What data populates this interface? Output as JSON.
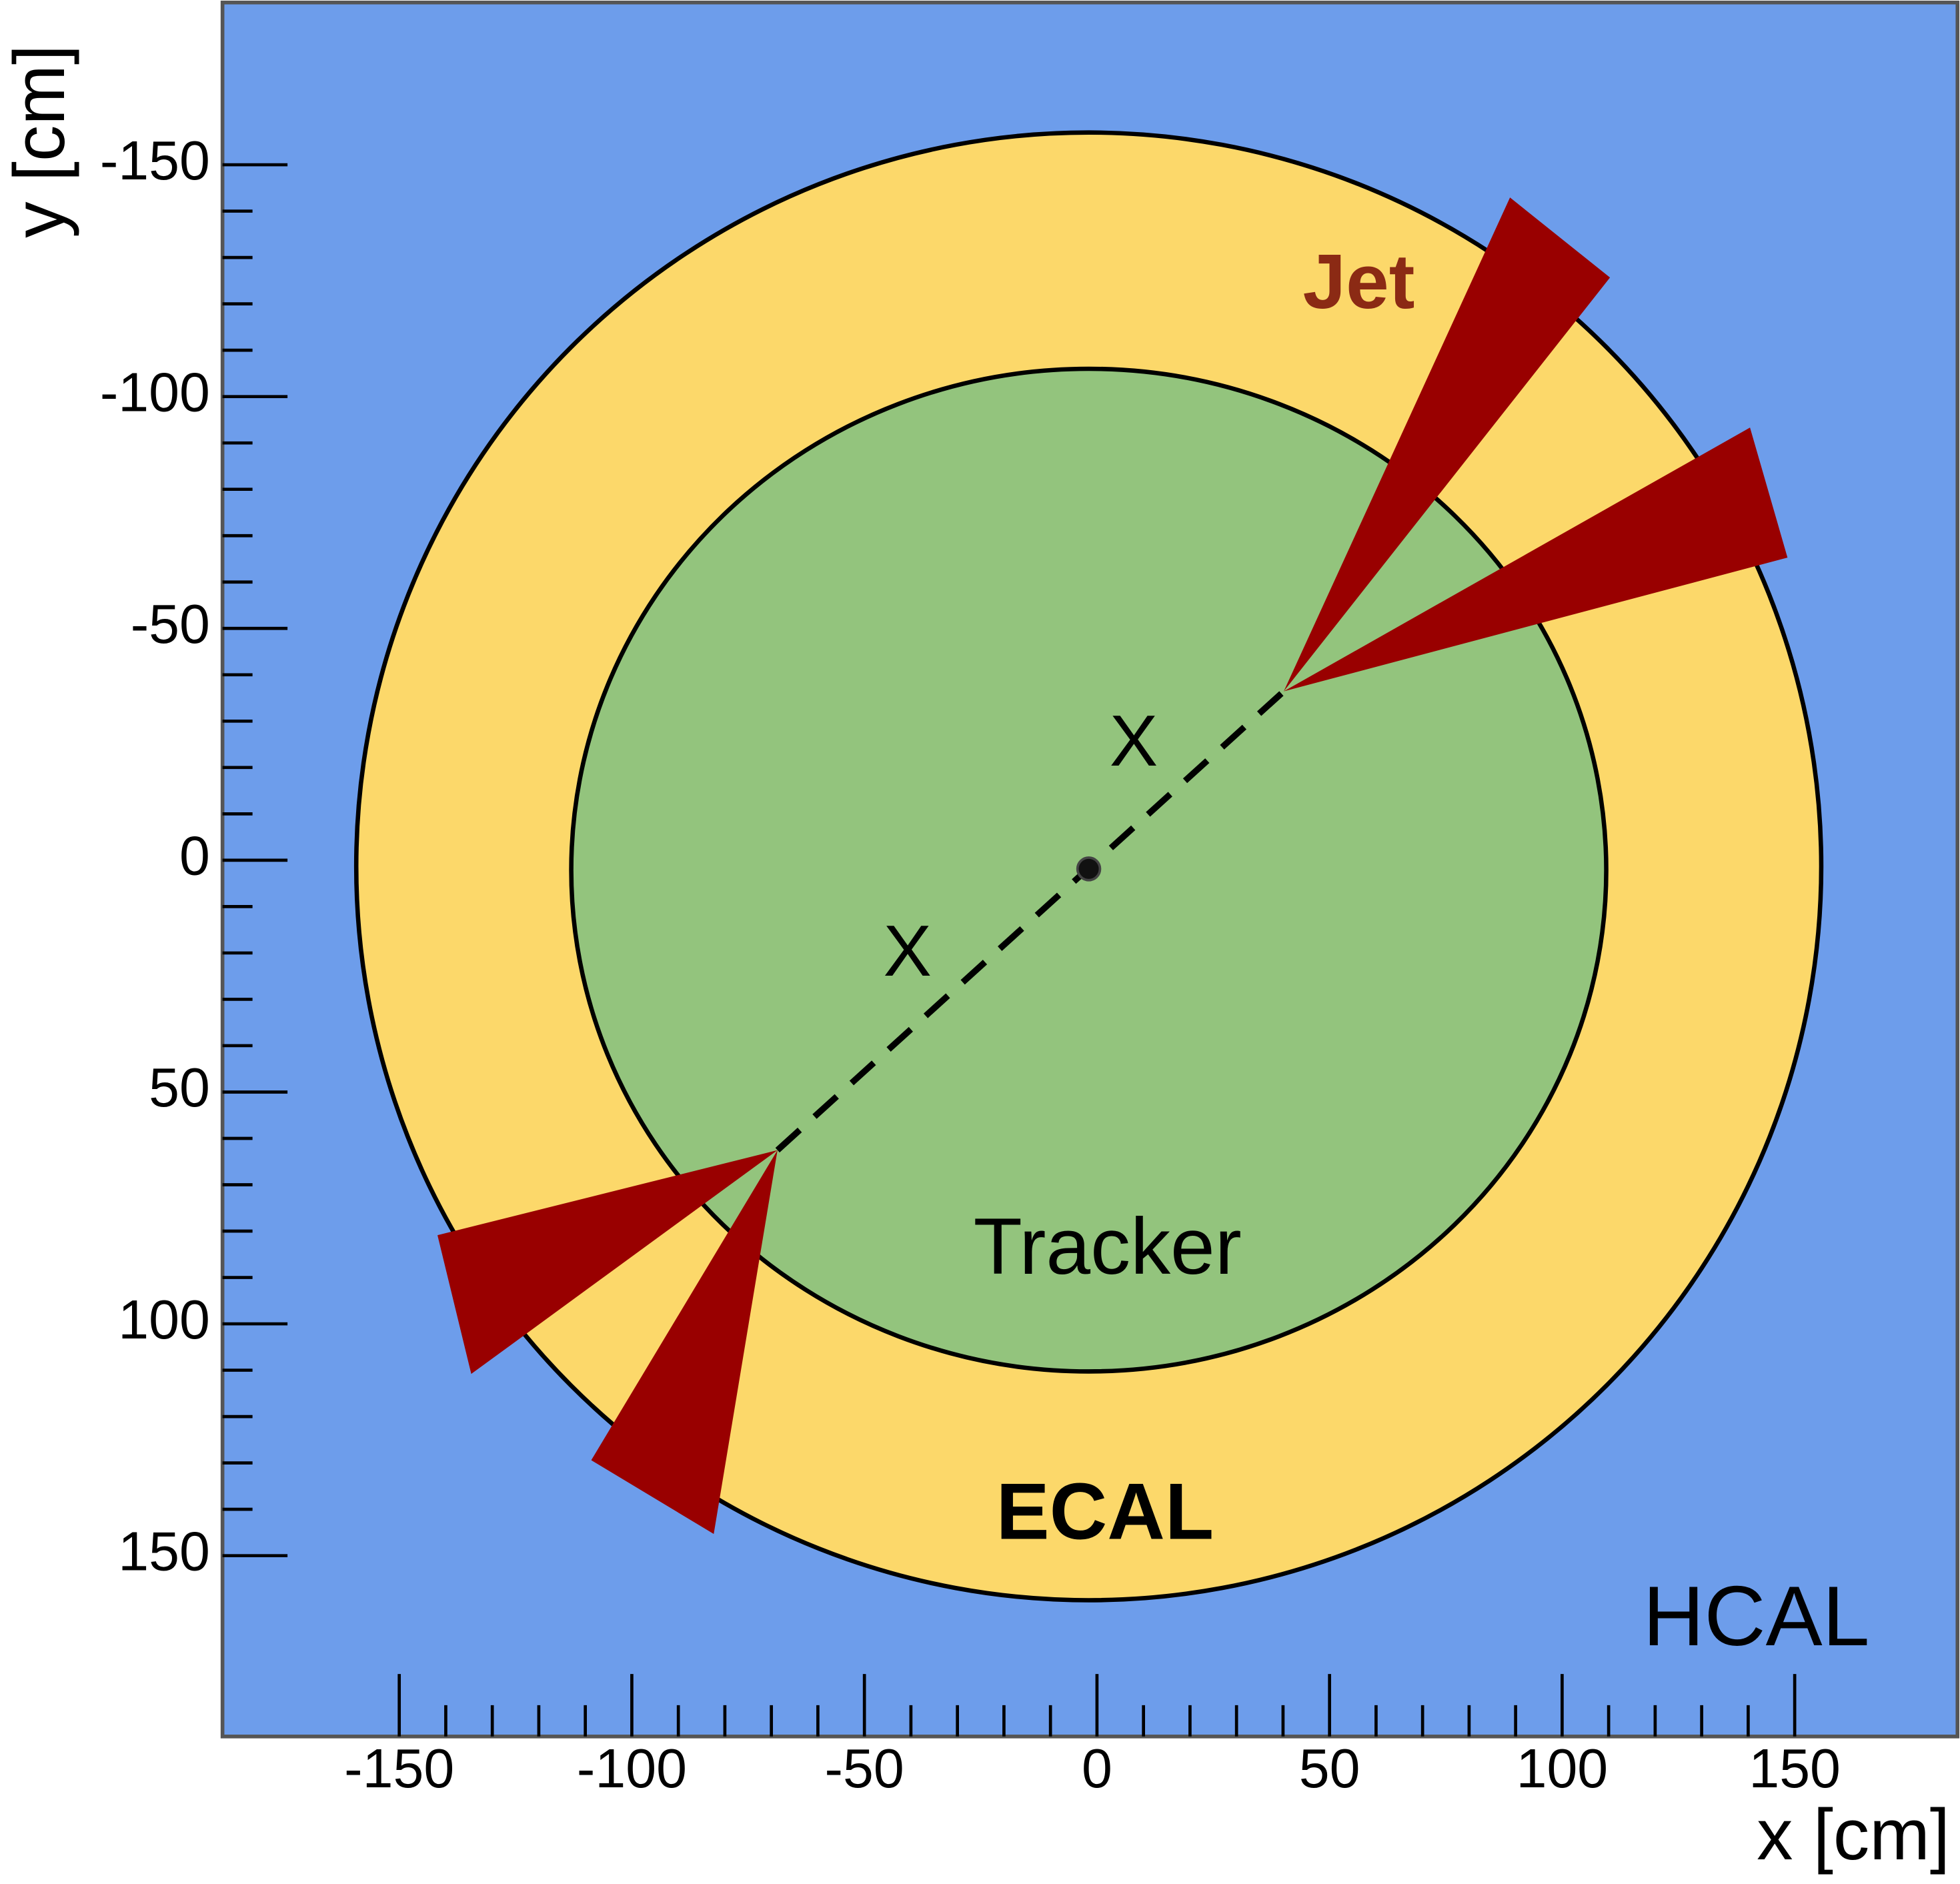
{
  "title_labels": {
    "jet": "Jet",
    "tracker": "Tracker",
    "ecal": "ECAL",
    "hcal": "HCAL",
    "vertex_marks": [
      "X",
      "X"
    ]
  },
  "x_axis": {
    "label": "x [cm]",
    "lim": [
      -188,
      185
    ],
    "ticks": [
      -150,
      -100,
      -50,
      0,
      50,
      100,
      150
    ]
  },
  "y_axis": {
    "label": "y [cm]",
    "lim": [
      -185,
      189
    ],
    "ticks": [
      -150,
      -100,
      -50,
      0,
      50,
      100,
      150
    ]
  }
}
